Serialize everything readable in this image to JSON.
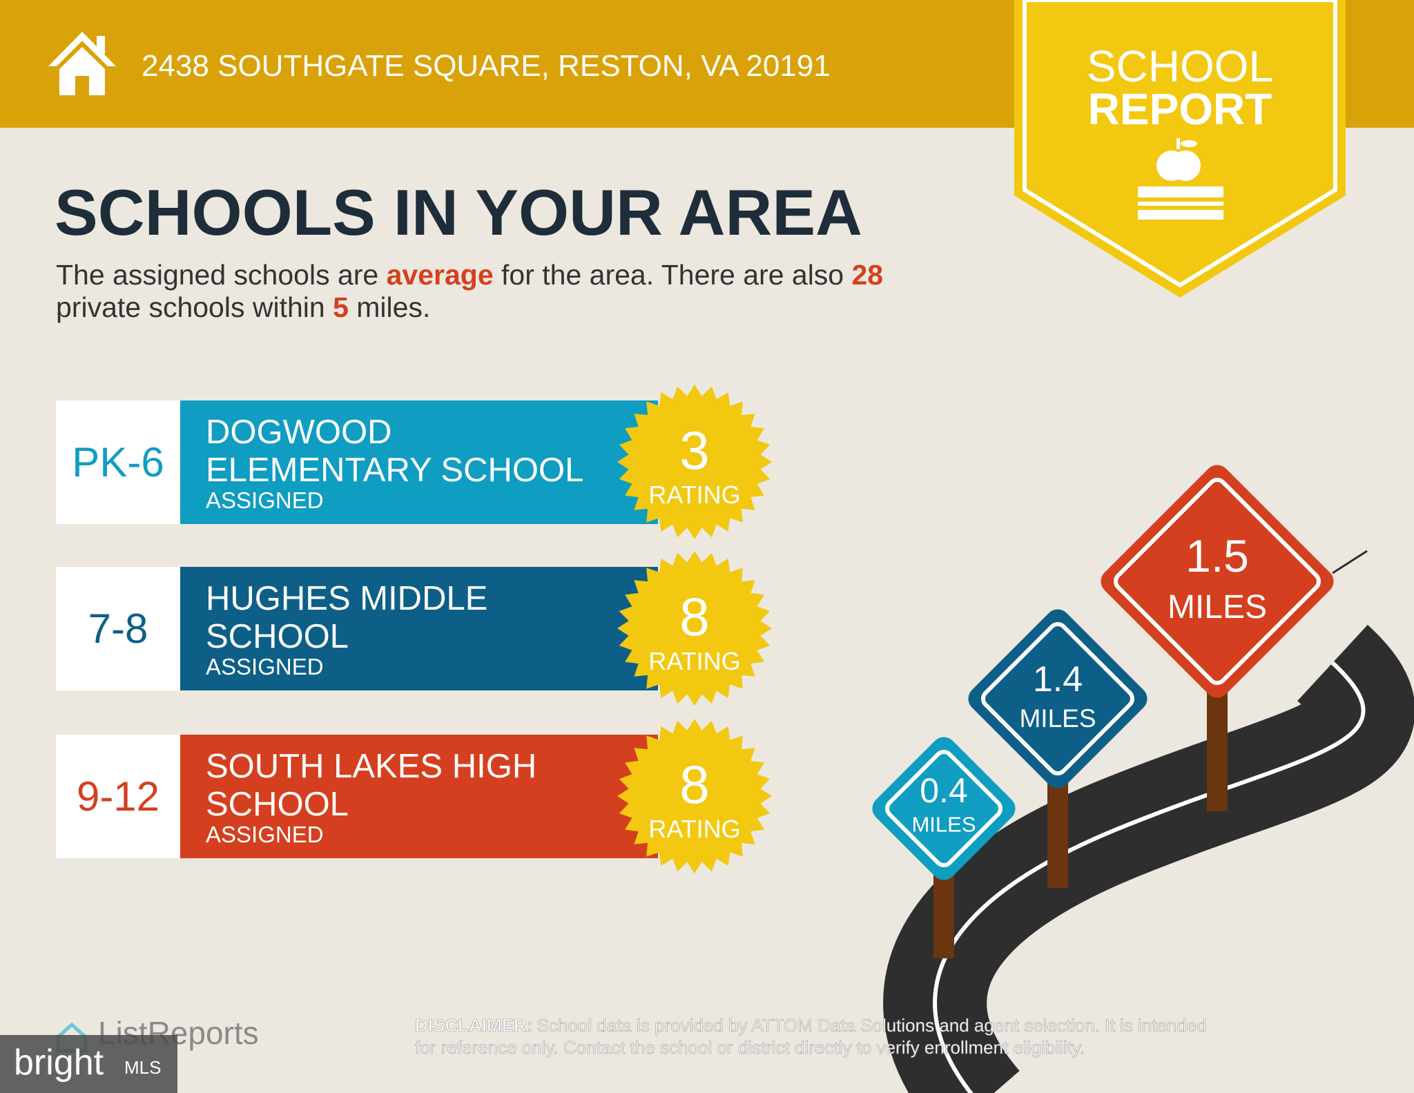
{
  "header": {
    "address": "2438 SOUTHGATE SQUARE, RESTON, VA 20191",
    "badge": [
      "SCHOOL",
      "REPORT"
    ]
  },
  "title": "SCHOOLS IN YOUR AREA",
  "summary": [
    "The assigned schools are ",
    "average",
    " for the area. There are also ",
    28,
    "private schools within ",
    5,
    " miles."
  ],
  "schools": [
    {
      "grades": "PK-6",
      "name": [
        "DOGWOOD",
        "ELEMENTARY SCHOOL"
      ],
      "status": "ASSIGNED",
      "rating": 3,
      "rating_label": "RATING"
    },
    {
      "grades": "7-8",
      "name": [
        "HUGHES MIDDLE",
        "SCHOOL"
      ],
      "status": "ASSIGNED",
      "rating": 8,
      "rating_label": "RATING"
    },
    {
      "grades": "9-12",
      "name": [
        "SOUTH LAKES HIGH",
        "SCHOOL"
      ],
      "status": "ASSIGNED",
      "rating": 8,
      "rating_label": "RATING"
    }
  ],
  "distances": [
    {
      "value": 1.5,
      "unit": "MILES"
    },
    {
      "value": 1.4,
      "unit": "MILES"
    },
    {
      "value": 0.4,
      "unit": "MILES"
    }
  ],
  "footer": {
    "brand": "ListReports",
    "watermark": "bright",
    "watermark_suffix": "MLS",
    "disclaimer_label": "DISCLAIMER:",
    "disclaimer": [
      "School data is provided by ATTOM Data Solutions and agent selection. It is intended",
      "for reference only. Contact the school or district directly to verify enrollment eligibility."
    ]
  }
}
